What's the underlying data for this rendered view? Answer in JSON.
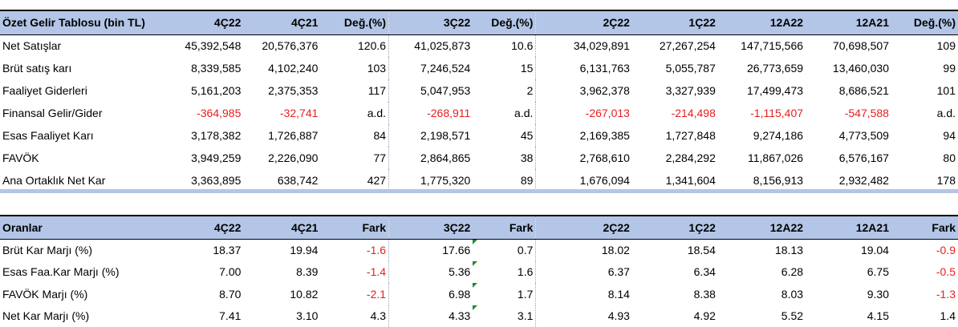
{
  "income": {
    "headers": [
      "Özet Gelir Tablosu (bin TL)",
      "4Ç22",
      "4Ç21",
      "Değ.(%)",
      "3Ç22",
      "Değ.(%)",
      "2Ç22",
      "1Ç22",
      "12A22",
      "12A21",
      "Değ.(%)"
    ],
    "rows": [
      {
        "label": "Net Satışlar",
        "values": [
          "45,392,548",
          "20,576,376",
          "120.6",
          "41,025,873",
          "10.6",
          "34,029,891",
          "27,267,254",
          "147,715,566",
          "70,698,507",
          "109"
        ]
      },
      {
        "label": "Brüt satış karı",
        "values": [
          "8,339,585",
          "4,102,240",
          "103",
          "7,246,524",
          "15",
          "6,131,763",
          "5,055,787",
          "26,773,659",
          "13,460,030",
          "99"
        ]
      },
      {
        "label": "Faaliyet Giderleri",
        "values": [
          "5,161,203",
          "2,375,353",
          "117",
          "5,047,953",
          "2",
          "3,962,378",
          "3,327,939",
          "17,499,473",
          "8,686,521",
          "101"
        ]
      },
      {
        "label": "Finansal Gelir/Gider",
        "values": [
          "-364,985",
          "-32,741",
          "a.d.",
          "-268,911",
          "a.d.",
          "-267,013",
          "-214,498",
          "-1,115,407",
          "-547,588",
          "a.d."
        ]
      },
      {
        "label": "Esas Faaliyet Karı",
        "values": [
          "3,178,382",
          "1,726,887",
          "84",
          "2,198,571",
          "45",
          "2,169,385",
          "1,727,848",
          "9,274,186",
          "4,773,509",
          "94"
        ]
      },
      {
        "label": "FAVÖK",
        "values": [
          "3,949,259",
          "2,226,090",
          "77",
          "2,864,865",
          "38",
          "2,768,610",
          "2,284,292",
          "11,867,026",
          "6,576,167",
          "80"
        ]
      },
      {
        "label": "Ana Ortaklık Net Kar",
        "values": [
          "3,363,895",
          "638,742",
          "427",
          "1,775,320",
          "89",
          "1,676,094",
          "1,341,604",
          "8,156,913",
          "2,932,482",
          "178"
        ]
      }
    ]
  },
  "ratios": {
    "headers": [
      "Oranlar",
      "4Ç22",
      "4Ç21",
      "Fark",
      "3Ç22",
      "Fark",
      "2Ç22",
      "1Ç22",
      "12A22",
      "12A21",
      "Fark"
    ],
    "rows": [
      {
        "label": "Brüt Kar Marjı (%)",
        "values": [
          "18.37",
          "19.94",
          "-1.6",
          "17.66",
          "0.7",
          "18.02",
          "18.54",
          "18.13",
          "19.04",
          "-0.9"
        ]
      },
      {
        "label": "Esas Faa.Kar Marjı (%)",
        "values": [
          "7.00",
          "8.39",
          "-1.4",
          "5.36",
          "1.6",
          "6.37",
          "6.34",
          "6.28",
          "6.75",
          "-0.5"
        ]
      },
      {
        "label": "FAVÖK Marjı (%)",
        "values": [
          "8.70",
          "10.82",
          "-2.1",
          "6.98",
          "1.7",
          "8.14",
          "8.38",
          "8.03",
          "9.30",
          "-1.3"
        ]
      },
      {
        "label": "Net Kar Marjı (%)",
        "values": [
          "7.41",
          "3.10",
          "4.3",
          "4.33",
          "3.1",
          "4.93",
          "4.92",
          "5.52",
          "4.15",
          "1.4"
        ]
      }
    ]
  },
  "colors": {
    "header_bg": "#b4c6e7",
    "negative": "#e81e1e",
    "comment_marker": "#1f8a2e"
  }
}
